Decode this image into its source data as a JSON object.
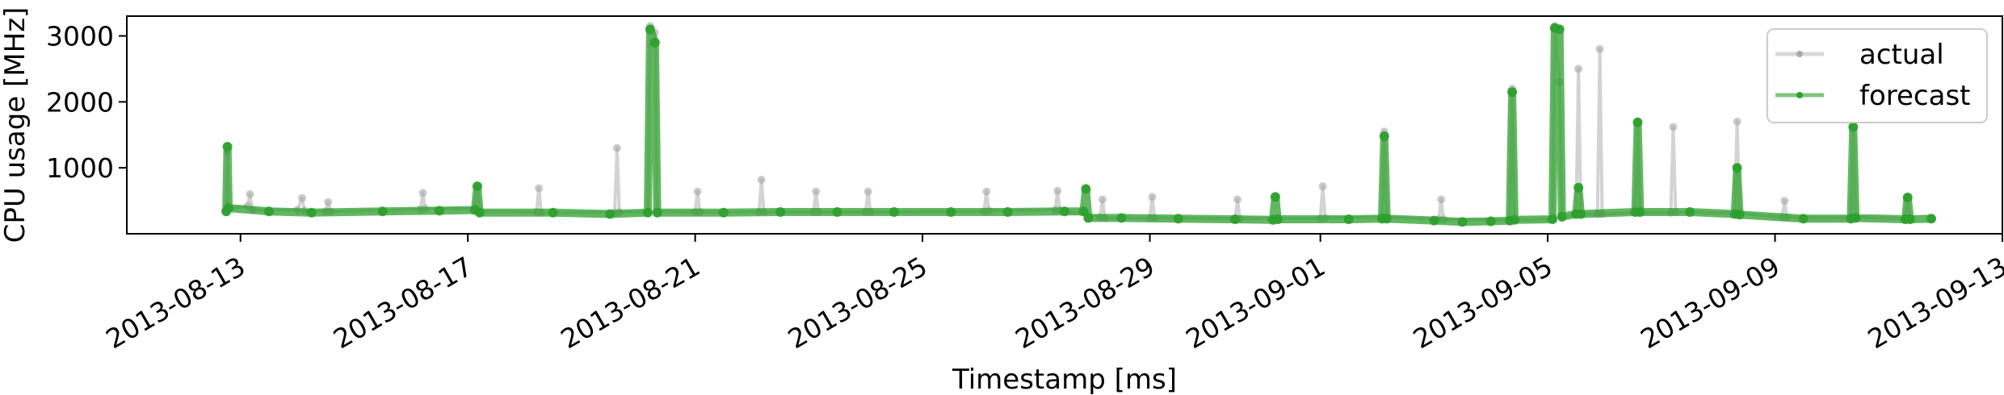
{
  "chart_data": {
    "type": "line",
    "title": "",
    "xlabel": "Timestamp [ms]",
    "ylabel": "CPU usage [MHz]",
    "x_type": "date",
    "xlim": [
      "2013-08-11",
      "2013-09-13"
    ],
    "ylim": [
      0,
      3300
    ],
    "grid": false,
    "legend": "top-right",
    "x_ticks": [
      "2013-08-13",
      "2013-08-17",
      "2013-08-21",
      "2013-08-25",
      "2013-08-29",
      "2013-09-01",
      "2013-09-05",
      "2013-09-09",
      "2013-09-13"
    ],
    "y_ticks": [
      1000,
      2000,
      3000
    ],
    "series": [
      {
        "name": "actual",
        "color": "#a8a8a8",
        "points": [
          [
            "2013-08-12 18:00",
            340
          ],
          [
            "2013-08-12 18:30",
            1250
          ],
          [
            "2013-08-12 19:00",
            380
          ],
          [
            "2013-08-13 03:00",
            420
          ],
          [
            "2013-08-13 04:00",
            600
          ],
          [
            "2013-08-13 05:00",
            360
          ],
          [
            "2013-08-14 00:00",
            360
          ],
          [
            "2013-08-14 02:00",
            540
          ],
          [
            "2013-08-14 03:00",
            350
          ],
          [
            "2013-08-14 12:00",
            340
          ],
          [
            "2013-08-14 13:00",
            480
          ],
          [
            "2013-08-14 14:00",
            340
          ],
          [
            "2013-08-16 04:00",
            370
          ],
          [
            "2013-08-16 05:00",
            620
          ],
          [
            "2013-08-16 06:00",
            380
          ],
          [
            "2013-08-17 03:00",
            380
          ],
          [
            "2013-08-17 04:00",
            720
          ],
          [
            "2013-08-17 05:00",
            340
          ],
          [
            "2013-08-18 05:00",
            330
          ],
          [
            "2013-08-18 06:00",
            690
          ],
          [
            "2013-08-18 07:00",
            320
          ],
          [
            "2013-08-19 14:00",
            320
          ],
          [
            "2013-08-19 15:00",
            1300
          ],
          [
            "2013-08-19 16:00",
            330
          ],
          [
            "2013-08-20 04:00",
            330
          ],
          [
            "2013-08-20 05:00",
            3150
          ],
          [
            "2013-08-20 07:00",
            3050
          ],
          [
            "2013-08-20 08:00",
            340
          ],
          [
            "2013-08-21 00:00",
            330
          ],
          [
            "2013-08-21 01:00",
            640
          ],
          [
            "2013-08-21 02:00",
            330
          ],
          [
            "2013-08-22 03:00",
            330
          ],
          [
            "2013-08-22 04:00",
            820
          ],
          [
            "2013-08-22 05:00",
            330
          ],
          [
            "2013-08-23 02:00",
            330
          ],
          [
            "2013-08-23 03:00",
            640
          ],
          [
            "2013-08-23 04:00",
            330
          ],
          [
            "2013-08-24 00:00",
            330
          ],
          [
            "2013-08-24 01:00",
            640
          ],
          [
            "2013-08-24 02:00",
            330
          ],
          [
            "2013-08-26 02:00",
            340
          ],
          [
            "2013-08-26 03:00",
            640
          ],
          [
            "2013-08-26 04:00",
            350
          ],
          [
            "2013-08-27 08:00",
            360
          ],
          [
            "2013-08-27 09:00",
            650
          ],
          [
            "2013-08-27 10:00",
            360
          ],
          [
            "2013-08-28 03:00",
            250
          ],
          [
            "2013-08-28 04:00",
            520
          ],
          [
            "2013-08-28 05:00",
            240
          ],
          [
            "2013-08-29 00:00",
            240
          ],
          [
            "2013-08-29 01:00",
            560
          ],
          [
            "2013-08-29 02:00",
            240
          ],
          [
            "2013-08-30 12:00",
            230
          ],
          [
            "2013-08-30 13:00",
            520
          ],
          [
            "2013-08-30 14:00",
            230
          ],
          [
            "2013-09-01 00:00",
            230
          ],
          [
            "2013-09-01 01:00",
            720
          ],
          [
            "2013-09-01 02:00",
            240
          ],
          [
            "2013-09-02 02:00",
            250
          ],
          [
            "2013-09-02 03:00",
            1550
          ],
          [
            "2013-09-02 04:00",
            250
          ],
          [
            "2013-09-03 02:00",
            220
          ],
          [
            "2013-09-03 03:00",
            520
          ],
          [
            "2013-09-03 04:00",
            220
          ],
          [
            "2013-09-04 08:00",
            200
          ],
          [
            "2013-09-04 09:00",
            2200
          ],
          [
            "2013-09-04 10:00",
            210
          ],
          [
            "2013-09-05 02:00",
            220
          ],
          [
            "2013-09-05 03:00",
            3150
          ],
          [
            "2013-09-05 05:00",
            2300
          ],
          [
            "2013-09-05 06:00",
            240
          ],
          [
            "2013-09-05 12:00",
            300
          ],
          [
            "2013-09-05 13:00",
            2500
          ],
          [
            "2013-09-05 14:00",
            300
          ],
          [
            "2013-09-05 21:00",
            300
          ],
          [
            "2013-09-05 22:00",
            2800
          ],
          [
            "2013-09-05 23:00",
            300
          ],
          [
            "2013-09-06 13:00",
            320
          ],
          [
            "2013-09-06 14:00",
            1700
          ],
          [
            "2013-09-06 15:00",
            320
          ],
          [
            "2013-09-07 04:00",
            320
          ],
          [
            "2013-09-07 05:00",
            1620
          ],
          [
            "2013-09-07 06:00",
            330
          ],
          [
            "2013-09-08 07:00",
            310
          ],
          [
            "2013-09-08 08:00",
            1700
          ],
          [
            "2013-09-08 09:00",
            310
          ],
          [
            "2013-09-09 03:00",
            250
          ],
          [
            "2013-09-09 04:00",
            500
          ],
          [
            "2013-09-09 05:00",
            250
          ],
          [
            "2013-09-10 08:00",
            240
          ],
          [
            "2013-09-10 09:00",
            1650
          ],
          [
            "2013-09-10 10:00",
            250
          ],
          [
            "2013-09-11 07:00",
            230
          ],
          [
            "2013-09-11 08:00",
            560
          ],
          [
            "2013-09-11 09:00",
            230
          ]
        ]
      },
      {
        "name": "forecast",
        "color": "#2ca02c",
        "points": [
          [
            "2013-08-12 18:00",
            340
          ],
          [
            "2013-08-12 18:30",
            1320
          ],
          [
            "2013-08-12 19:00",
            390
          ],
          [
            "2013-08-13 12:00",
            340
          ],
          [
            "2013-08-14 06:00",
            320
          ],
          [
            "2013-08-15 12:00",
            340
          ],
          [
            "2013-08-16 12:00",
            350
          ],
          [
            "2013-08-17 03:00",
            360
          ],
          [
            "2013-08-17 04:00",
            720
          ],
          [
            "2013-08-17 05:00",
            320
          ],
          [
            "2013-08-18 12:00",
            320
          ],
          [
            "2013-08-19 12:00",
            300
          ],
          [
            "2013-08-20 04:00",
            320
          ],
          [
            "2013-08-20 05:00",
            3100
          ],
          [
            "2013-08-20 07:00",
            2900
          ],
          [
            "2013-08-20 08:00",
            320
          ],
          [
            "2013-08-21 12:00",
            320
          ],
          [
            "2013-08-22 12:00",
            330
          ],
          [
            "2013-08-23 12:00",
            330
          ],
          [
            "2013-08-24 12:00",
            330
          ],
          [
            "2013-08-25 12:00",
            330
          ],
          [
            "2013-08-26 12:00",
            330
          ],
          [
            "2013-08-27 12:00",
            340
          ],
          [
            "2013-08-27 20:00",
            340
          ],
          [
            "2013-08-27 21:00",
            680
          ],
          [
            "2013-08-27 22:00",
            240
          ],
          [
            "2013-08-28 12:00",
            240
          ],
          [
            "2013-08-29 12:00",
            230
          ],
          [
            "2013-08-30 12:00",
            220
          ],
          [
            "2013-08-31 04:00",
            210
          ],
          [
            "2013-08-31 05:00",
            560
          ],
          [
            "2013-08-31 06:00",
            220
          ],
          [
            "2013-09-01 12:00",
            220
          ],
          [
            "2013-09-02 02:00",
            230
          ],
          [
            "2013-09-02 03:00",
            1480
          ],
          [
            "2013-09-02 04:00",
            230
          ],
          [
            "2013-09-03 00:00",
            200
          ],
          [
            "2013-09-03 12:00",
            180
          ],
          [
            "2013-09-04 00:00",
            190
          ],
          [
            "2013-09-04 08:00",
            200
          ],
          [
            "2013-09-04 09:00",
            2150
          ],
          [
            "2013-09-04 10:00",
            210
          ],
          [
            "2013-09-05 02:00",
            220
          ],
          [
            "2013-09-05 03:00",
            3120
          ],
          [
            "2013-09-05 05:00",
            3100
          ],
          [
            "2013-09-05 06:00",
            260
          ],
          [
            "2013-09-05 12:00",
            300
          ],
          [
            "2013-09-05 13:00",
            700
          ],
          [
            "2013-09-05 14:00",
            300
          ],
          [
            "2013-09-06 13:00",
            330
          ],
          [
            "2013-09-06 14:00",
            1690
          ],
          [
            "2013-09-06 15:00",
            330
          ],
          [
            "2013-09-07 12:00",
            330
          ],
          [
            "2013-09-08 07:00",
            300
          ],
          [
            "2013-09-08 08:00",
            1000
          ],
          [
            "2013-09-08 09:00",
            290
          ],
          [
            "2013-09-09 12:00",
            230
          ],
          [
            "2013-09-10 08:00",
            230
          ],
          [
            "2013-09-10 09:00",
            1620
          ],
          [
            "2013-09-10 10:00",
            240
          ],
          [
            "2013-09-11 07:00",
            220
          ],
          [
            "2013-09-11 08:00",
            550
          ],
          [
            "2013-09-11 09:00",
            220
          ],
          [
            "2013-09-11 18:00",
            230
          ]
        ]
      }
    ]
  }
}
